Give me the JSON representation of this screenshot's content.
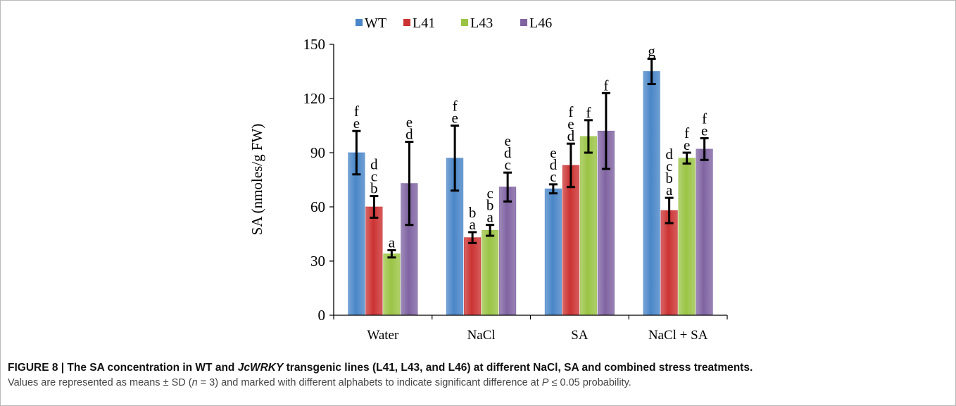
{
  "chart_data": {
    "type": "bar",
    "ylabel": "SA (nmoles/g  FW)",
    "ylim": [
      0,
      150
    ],
    "yticks": [
      "0",
      "30",
      "60",
      "90",
      "120",
      "150"
    ],
    "legend_position": "top",
    "categories": [
      "Water",
      "NaCl",
      "SA",
      "NaCl + SA"
    ],
    "series": [
      {
        "name": "WT",
        "color": "#4a86c8",
        "values": [
          90,
          87,
          70,
          135
        ],
        "errors": [
          12,
          18,
          2.5,
          7
        ],
        "letters": [
          "fe",
          "fe",
          "edc",
          "g"
        ]
      },
      {
        "name": "L41",
        "color": "#cc3333",
        "values": [
          60,
          43,
          83,
          58
        ],
        "errors": [
          6,
          3,
          12,
          7
        ],
        "letters": [
          "dcb",
          "ba",
          "fed",
          "dcba"
        ]
      },
      {
        "name": "L43",
        "color": "#9bc445",
        "values": [
          34,
          47,
          99,
          87
        ],
        "errors": [
          2,
          3,
          9,
          3
        ],
        "letters": [
          "a",
          "cba",
          "f",
          "fe"
        ]
      },
      {
        "name": "L46",
        "color": "#8064a2",
        "values": [
          73,
          71,
          102,
          92
        ],
        "errors": [
          23,
          8,
          21,
          6
        ],
        "letters": [
          "ed",
          "edc",
          "f",
          "fe"
        ]
      }
    ]
  },
  "caption": {
    "title_part1": "FIGURE 8 | The SA concentration in WT and ",
    "title_italic": "JcWRKY",
    "title_part2": " transgenic lines (L41, L43, and L46) at different NaCl, SA and combined stress treatments.",
    "note_part1": "Values are represented as means ± SD (",
    "note_italic_n": "n",
    "note_part2": " = 3) and marked with different alphabets to indicate significant difference at ",
    "note_italic_p": "P",
    "note_part3": " ≤ 0.05 probability."
  }
}
